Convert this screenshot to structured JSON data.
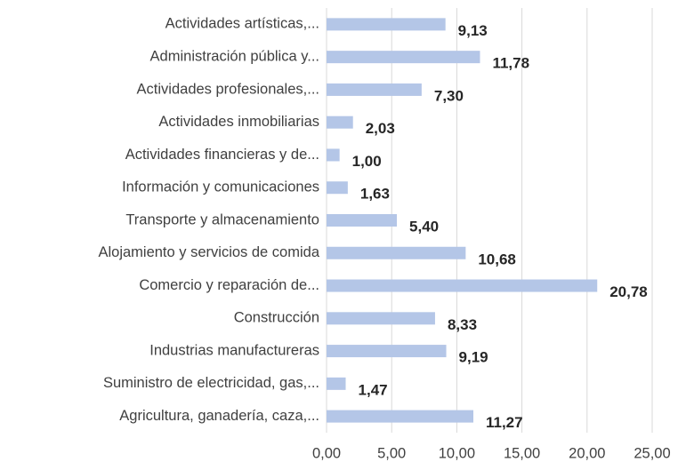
{
  "chart_data": {
    "type": "bar",
    "orientation": "horizontal",
    "categories": [
      "Actividades artísticas,...",
      "Administración pública y...",
      "Actividades profesionales,...",
      "Actividades inmobiliarias",
      "Actividades financieras y de...",
      "Información y comunicaciones",
      "Transporte y almacenamiento",
      "Alojamiento y servicios de comida",
      "Comercio y reparación de...",
      "Construcción",
      "Industrias manufactureras",
      "Suministro de electricidad, gas,...",
      "Agricultura, ganadería, caza,..."
    ],
    "values": [
      9.13,
      11.78,
      7.3,
      2.03,
      1.0,
      1.63,
      5.4,
      10.68,
      20.78,
      8.33,
      9.19,
      1.47,
      11.27
    ],
    "value_labels": [
      "9,13",
      "11,78",
      "7,30",
      "2,03",
      "1,00",
      "1,63",
      "5,40",
      "10,68",
      "20,78",
      "8,33",
      "9,19",
      "1,47",
      "11,27"
    ],
    "color": "#b4c6e7",
    "xlim": [
      0,
      25
    ],
    "xticks": [
      {
        "value": 0,
        "label": "0,00"
      },
      {
        "value": 5,
        "label": "5,00"
      },
      {
        "value": 10,
        "label": "10,00"
      },
      {
        "value": 15,
        "label": "15,00"
      },
      {
        "value": 20,
        "label": "20,00"
      },
      {
        "value": 25,
        "label": "25,00"
      }
    ],
    "grid": true
  }
}
